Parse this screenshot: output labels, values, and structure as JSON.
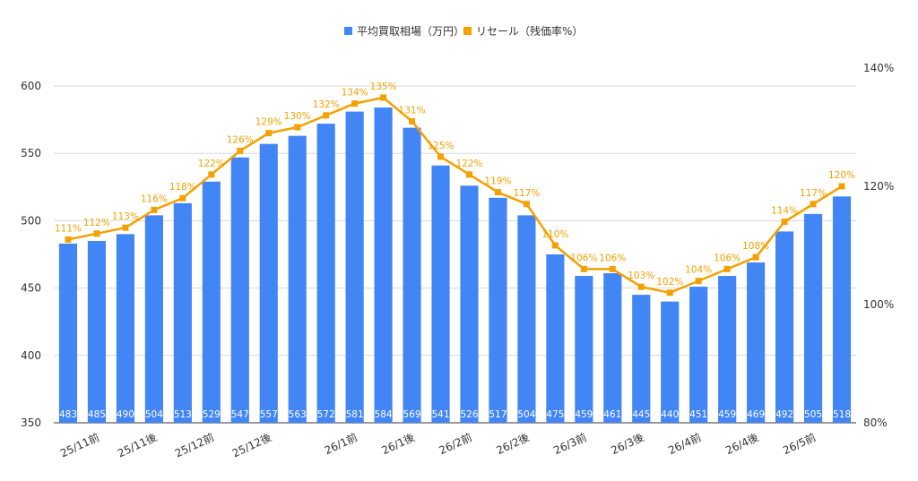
{
  "chart_data": {
    "type": "bar",
    "title": "",
    "legend_position": "top-center",
    "grid": true,
    "categories": [
      "25/11前",
      "25/11後",
      "25/11後",
      "25/11後",
      "25/12前",
      "25/12前",
      "25/12後",
      "25/12後",
      "26/1前",
      "26/1前",
      "26/1前",
      "26/1後",
      "26/1後",
      "26/2前",
      "26/2前",
      "26/2後",
      "26/2後",
      "26/3前",
      "26/3前",
      "26/3後",
      "26/3後",
      "26/4前",
      "26/4前",
      "26/4後",
      "26/4後",
      "26/5前",
      "26/5前",
      "26/5前"
    ],
    "x_tick_labels": [
      {
        "label": "25/11前",
        "index": 1
      },
      {
        "label": "25/11後",
        "index": 3
      },
      {
        "label": "25/12前",
        "index": 5
      },
      {
        "label": "25/12後",
        "index": 7
      },
      {
        "label": "26/1前",
        "index": 10
      },
      {
        "label": "26/1後",
        "index": 12
      },
      {
        "label": "26/2前",
        "index": 14
      },
      {
        "label": "26/2後",
        "index": 16
      },
      {
        "label": "26/3前",
        "index": 18
      },
      {
        "label": "26/3後",
        "index": 20
      },
      {
        "label": "26/4前",
        "index": 22
      },
      {
        "label": "26/4後",
        "index": 24
      },
      {
        "label": "26/5前",
        "index": 26
      }
    ],
    "series": [
      {
        "name": "平均買取相場（万円）",
        "type": "bar",
        "axis": "left",
        "color": "#4285f4",
        "values": [
          483,
          485,
          490,
          504,
          513,
          529,
          547,
          557,
          563,
          572,
          581,
          584,
          569,
          541,
          526,
          517,
          504,
          475,
          459,
          461,
          445,
          440,
          451,
          459,
          469,
          492,
          505,
          518
        ]
      },
      {
        "name": "リセール（残価率%）",
        "type": "line",
        "axis": "right",
        "color": "#f4a100",
        "values": [
          111,
          112,
          113,
          116,
          118,
          122,
          126,
          129,
          130,
          132,
          134,
          135,
          131,
          125,
          122,
          119,
          117,
          110,
          106,
          106,
          103,
          102,
          104,
          106,
          108,
          114,
          117,
          120
        ]
      }
    ],
    "y_left": {
      "min": 350,
      "max": 600,
      "ticks": [
        350,
        400,
        450,
        500,
        550,
        600
      ]
    },
    "y_right": {
      "min": 80,
      "max": 140,
      "ticks": [
        "80%",
        "100%",
        "120%",
        "140%"
      ]
    }
  }
}
